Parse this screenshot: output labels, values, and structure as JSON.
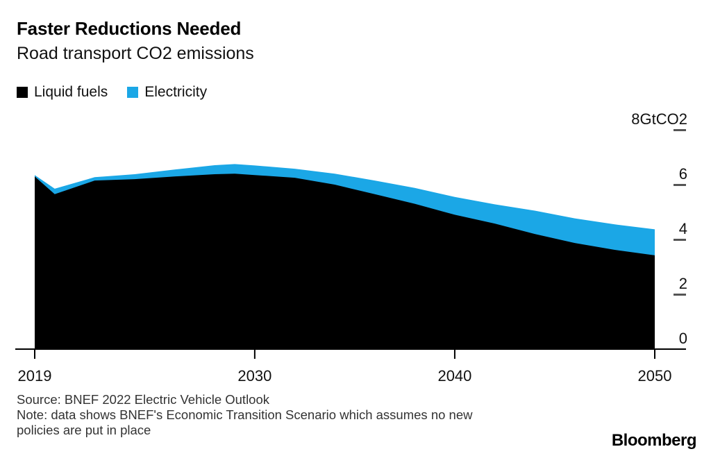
{
  "header": {
    "title": "Faster Reductions Needed",
    "subtitle": "Road transport CO2 emissions"
  },
  "chart_data": {
    "type": "area",
    "stacked": true,
    "title": "Faster Reductions Needed",
    "subtitle": "Road transport CO2 emissions",
    "x": [
      2019,
      2020,
      2022,
      2024,
      2026,
      2028,
      2029,
      2030,
      2032,
      2034,
      2036,
      2038,
      2040,
      2042,
      2044,
      2046,
      2048,
      2050
    ],
    "series": [
      {
        "name": "Liquid fuels",
        "color": "#000000",
        "values": [
          6.3,
          5.65,
          6.15,
          6.2,
          6.3,
          6.38,
          6.4,
          6.35,
          6.25,
          6.0,
          5.65,
          5.3,
          4.9,
          4.58,
          4.2,
          3.87,
          3.62,
          3.42
        ]
      },
      {
        "name": "Electricity",
        "color": "#1BA7E6",
        "values": [
          0.05,
          0.2,
          0.12,
          0.18,
          0.25,
          0.33,
          0.35,
          0.35,
          0.33,
          0.4,
          0.5,
          0.58,
          0.65,
          0.7,
          0.85,
          0.9,
          0.93,
          0.95
        ]
      }
    ],
    "xlim": [
      2019,
      2050
    ],
    "ylim": [
      0,
      8
    ],
    "x_ticks": [
      2019,
      2030,
      2040,
      2050
    ],
    "y_ticks": [
      {
        "value": 8,
        "label": "8GtCO2"
      },
      {
        "value": 6,
        "label": "6"
      },
      {
        "value": 4,
        "label": "4"
      },
      {
        "value": 2,
        "label": "2"
      },
      {
        "value": 0,
        "label": "0",
        "no_dash": true
      }
    ],
    "legend_position": "top-left",
    "grid": false
  },
  "footer": {
    "source": "Source: BNEF 2022 Electric Vehicle Outlook",
    "note_lines": [
      "Note: data shows BNEF's Economic Transition Scenario which assumes no new",
      "policies are put in place"
    ],
    "brand": "Bloomberg"
  },
  "colors": {
    "liquid_fuels": "#000000",
    "electricity": "#1BA7E6",
    "axis": "#000000",
    "y_dash": "#555555",
    "text": "#111111"
  }
}
